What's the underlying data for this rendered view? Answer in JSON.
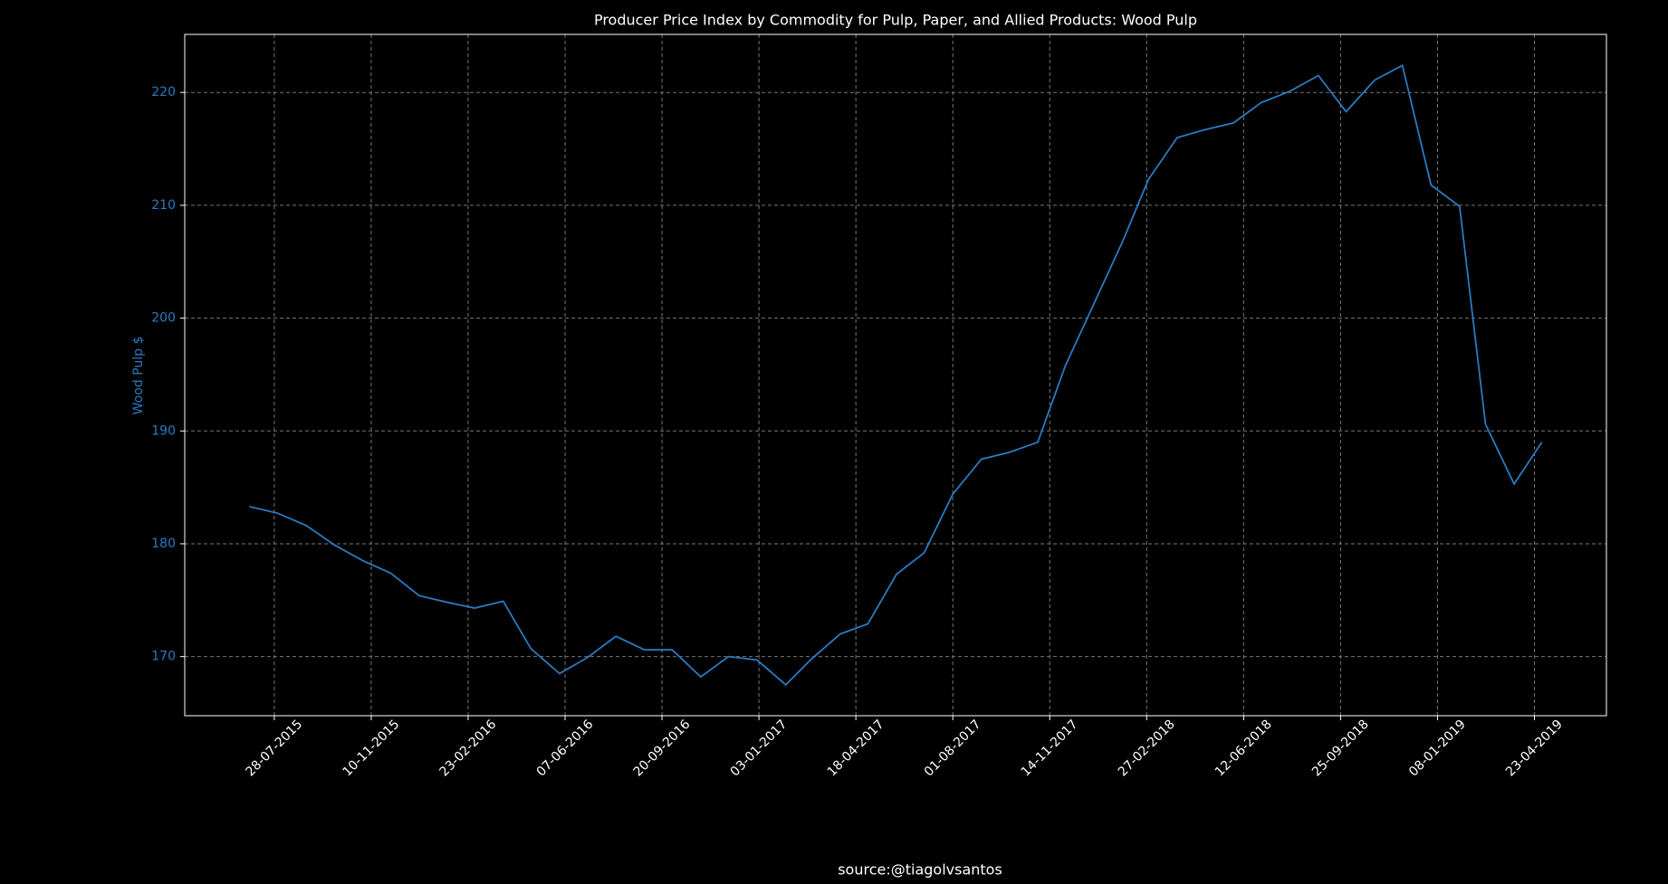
{
  "chart_data": {
    "type": "line",
    "title": "Producer Price Index by Commodity for Pulp, Paper, and Allied Products: Wood Pulp",
    "ylabel": "Wood Pulp $",
    "source": "source:@tiagolvsantos",
    "grid": true,
    "x": [
      "2015-07-01",
      "2015-08-01",
      "2015-09-01",
      "2015-10-01",
      "2015-11-01",
      "2015-12-01",
      "2016-01-01",
      "2016-02-01",
      "2016-03-01",
      "2016-04-01",
      "2016-05-01",
      "2016-06-01",
      "2016-07-01",
      "2016-08-01",
      "2016-09-01",
      "2016-10-01",
      "2016-11-01",
      "2016-12-01",
      "2017-01-01",
      "2017-02-01",
      "2017-03-01",
      "2017-04-01",
      "2017-05-01",
      "2017-06-01",
      "2017-07-01",
      "2017-08-01",
      "2017-09-01",
      "2017-10-01",
      "2017-11-01",
      "2017-12-01",
      "2018-01-01",
      "2018-02-01",
      "2018-03-01",
      "2018-04-01",
      "2018-05-01",
      "2018-06-01",
      "2018-07-01",
      "2018-08-01",
      "2018-09-01",
      "2018-10-01",
      "2018-11-01",
      "2018-12-01",
      "2019-01-01",
      "2019-02-01",
      "2019-03-01",
      "2019-04-01",
      "2019-05-01"
    ],
    "series": [
      {
        "name": "Wood Pulp",
        "color": "#2a7bc0",
        "values": [
          183.3,
          182.7,
          181.6,
          179.9,
          178.5,
          177.4,
          175.4,
          174.8,
          174.3,
          174.9,
          170.7,
          168.5,
          169.9,
          171.8,
          170.6,
          170.6,
          168.2,
          170.0,
          169.7,
          167.5,
          169.8,
          172.0,
          172.9,
          177.3,
          179.2,
          184.4,
          187.5,
          188.1,
          189.0,
          195.8,
          201.3,
          206.8,
          212.3,
          216.0,
          216.7,
          217.3,
          219.1,
          220.1,
          221.5,
          218.3,
          221.1,
          222.4,
          211.8,
          209.9,
          190.6,
          185.3,
          189.0
        ]
      }
    ],
    "xlim": [
      "2015-04-22",
      "2019-07-10"
    ],
    "xticks": [
      {
        "value": "2015-07-28",
        "label": "28-07-2015"
      },
      {
        "value": "2015-11-10",
        "label": "10-11-2015"
      },
      {
        "value": "2016-02-23",
        "label": "23-02-2016"
      },
      {
        "value": "2016-06-07",
        "label": "07-06-2016"
      },
      {
        "value": "2016-09-20",
        "label": "20-09-2016"
      },
      {
        "value": "2017-01-03",
        "label": "03-01-2017"
      },
      {
        "value": "2017-04-18",
        "label": "18-04-2017"
      },
      {
        "value": "2017-08-01",
        "label": "01-08-2017"
      },
      {
        "value": "2017-11-14",
        "label": "14-11-2017"
      },
      {
        "value": "2018-02-27",
        "label": "27-02-2018"
      },
      {
        "value": "2018-06-12",
        "label": "12-06-2018"
      },
      {
        "value": "2018-09-25",
        "label": "25-09-2018"
      },
      {
        "value": "2019-01-08",
        "label": "08-01-2019"
      },
      {
        "value": "2019-04-23",
        "label": "23-04-2019"
      }
    ],
    "ylim": [
      164.76,
      225.15
    ],
    "yticks": [
      170,
      180,
      190,
      200,
      210,
      220
    ]
  }
}
